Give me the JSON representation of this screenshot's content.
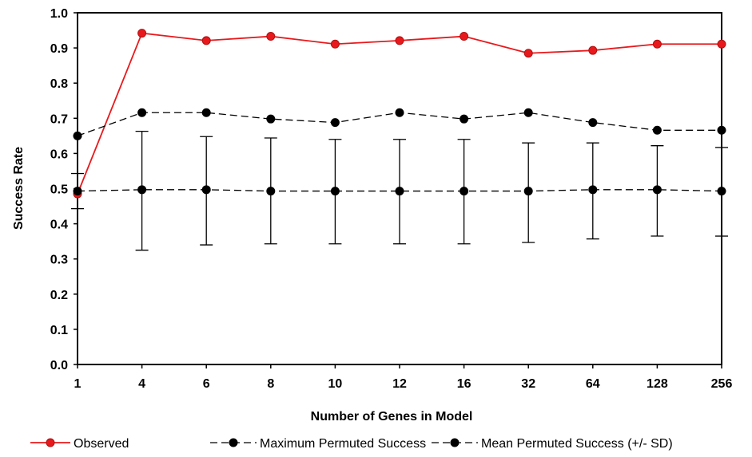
{
  "chart_data": {
    "type": "line",
    "xlabel": "Number of Genes in Model",
    "ylabel": "Success Rate",
    "categories": [
      "1",
      "4",
      "6",
      "8",
      "10",
      "12",
      "16",
      "32",
      "64",
      "128",
      "256"
    ],
    "ylim": [
      0.0,
      1.0
    ],
    "yticks": [
      "0.0",
      "0.1",
      "0.2",
      "0.3",
      "0.4",
      "0.5",
      "0.6",
      "0.7",
      "0.8",
      "0.9",
      "1.0"
    ],
    "grid": false,
    "legend_position": "bottom",
    "series": [
      {
        "name": "Observed",
        "color": "#e8191c",
        "style": "solid",
        "values": [
          0.485,
          0.942,
          0.921,
          0.933,
          0.911,
          0.921,
          0.933,
          0.885,
          0.893,
          0.911,
          0.911
        ]
      },
      {
        "name": "Maximum Permuted Success",
        "color": "#000000",
        "style": "dashed",
        "values": [
          0.65,
          0.716,
          0.716,
          0.698,
          0.688,
          0.716,
          0.698,
          0.716,
          0.688,
          0.666,
          0.666
        ]
      },
      {
        "name": "Mean Permuted Success (+/- SD)",
        "color": "#000000",
        "style": "dashed",
        "values": [
          0.493,
          0.497,
          0.497,
          0.493,
          0.493,
          0.493,
          0.493,
          0.493,
          0.497,
          0.497,
          0.493
        ],
        "error_low": [
          0.443,
          0.325,
          0.34,
          0.343,
          0.343,
          0.343,
          0.343,
          0.347,
          0.357,
          0.365,
          0.365
        ],
        "error_high": [
          0.543,
          0.663,
          0.648,
          0.644,
          0.64,
          0.64,
          0.64,
          0.63,
          0.63,
          0.622,
          0.617
        ]
      }
    ]
  }
}
